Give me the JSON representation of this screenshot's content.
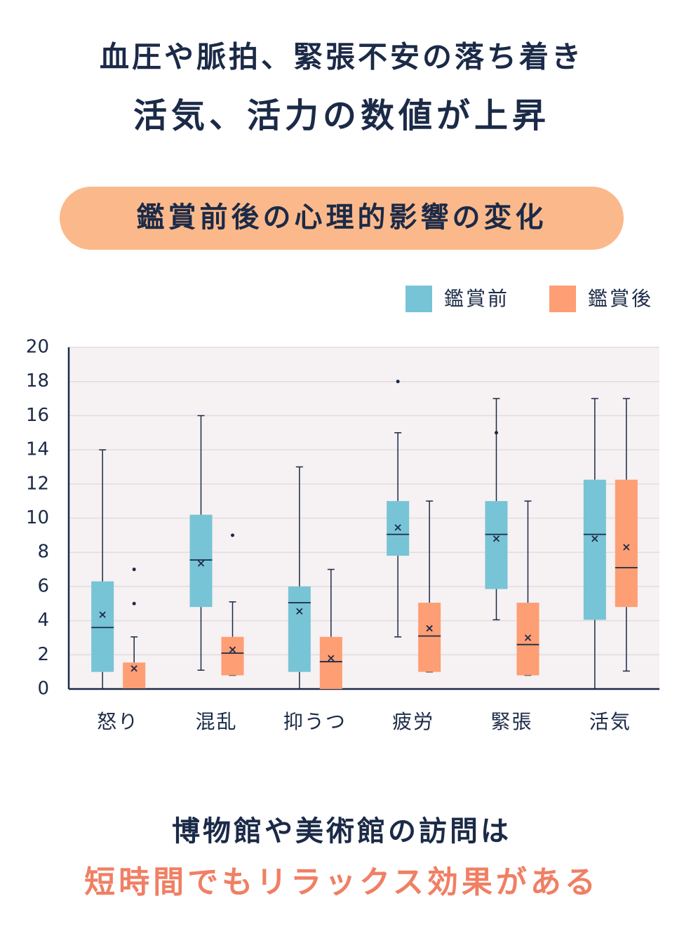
{
  "header": {
    "title_line1": "血圧や脈拍、緊張不安の落ち着き",
    "title_line2": "活気、活力の数値が上昇"
  },
  "chart_data": {
    "type": "box",
    "title": "鑑賞前後の心理的影響の変化",
    "categories": [
      "怒り",
      "混乱",
      "抑うつ",
      "疲労",
      "緊張",
      "活気"
    ],
    "ylim": [
      0,
      20
    ],
    "yticks": [
      0,
      2,
      4,
      6,
      8,
      10,
      12,
      14,
      16,
      18,
      20
    ],
    "grid": true,
    "legend": "top-right",
    "series": [
      {
        "name": "鑑賞前",
        "color": "#77c4d6",
        "boxes": [
          {
            "min": 0,
            "q1": 1,
            "median": 3.6,
            "q3": 6.3,
            "max": 14,
            "mean": 4.35
          },
          {
            "min": 1.1,
            "q1": 4.8,
            "median": 7.55,
            "q3": 10.2,
            "max": 16,
            "mean": 7.35
          },
          {
            "min": 0,
            "q1": 1,
            "median": 5.05,
            "q3": 6,
            "max": 13,
            "mean": 4.55
          },
          {
            "min": 3.05,
            "q1": 7.8,
            "median": 9.05,
            "q3": 11,
            "max": 15,
            "mean": 9.45,
            "outliers": [
              18
            ]
          },
          {
            "min": 4.05,
            "q1": 5.85,
            "median": 9.05,
            "q3": 11,
            "max": 17,
            "mean": 8.8,
            "outliers": [
              15
            ]
          },
          {
            "min": 0,
            "q1": 4.05,
            "median": 9.05,
            "q3": 12.25,
            "max": 17,
            "mean": 8.8
          }
        ]
      },
      {
        "name": "鑑賞後",
        "color": "#fd9e74",
        "boxes": [
          {
            "min": 0,
            "q1": 0,
            "median": 0,
            "q3": 1.55,
            "max": 3.05,
            "mean": 1.2,
            "outliers": [
              7,
              5
            ]
          },
          {
            "min": 0.8,
            "q1": 0.8,
            "median": 2.1,
            "q3": 3.05,
            "max": 5.1,
            "mean": 2.3,
            "outliers": [
              9
            ]
          },
          {
            "min": 0,
            "q1": 0,
            "median": 1.6,
            "q3": 3.05,
            "max": 7,
            "mean": 1.8
          },
          {
            "min": 1,
            "q1": 1,
            "median": 3.1,
            "q3": 5.05,
            "max": 11,
            "mean": 3.55
          },
          {
            "min": 0.8,
            "q1": 0.8,
            "median": 2.6,
            "q3": 5.05,
            "max": 11,
            "mean": 3
          },
          {
            "min": 1.05,
            "q1": 4.8,
            "median": 7.1,
            "q3": 12.25,
            "max": 17,
            "mean": 8.3
          }
        ]
      }
    ]
  },
  "footer": {
    "line1": "博物館や美術館の訪問は",
    "line2": "短時間でもリラックス効果がある"
  }
}
